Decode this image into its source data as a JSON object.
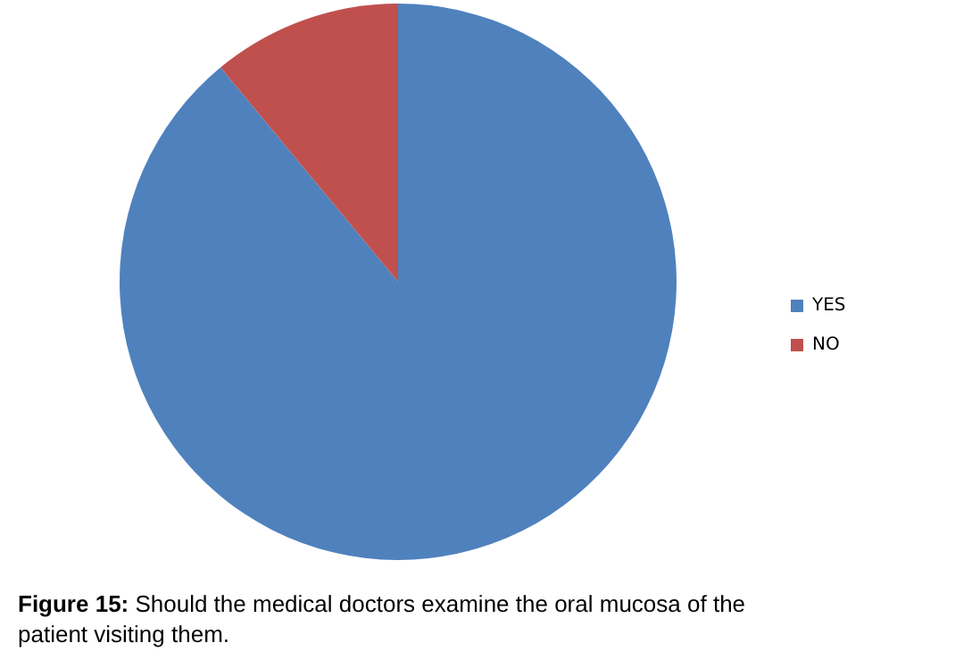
{
  "chart_data": {
    "type": "pie",
    "title": "Figure 15: Should the medical doctors examine the oral mucosa of the patient visiting them.",
    "categories": [
      "YES",
      "NO"
    ],
    "values": [
      89,
      11
    ],
    "colors": [
      "#4f81bd",
      "#c0504d"
    ],
    "legend": "right"
  }
}
